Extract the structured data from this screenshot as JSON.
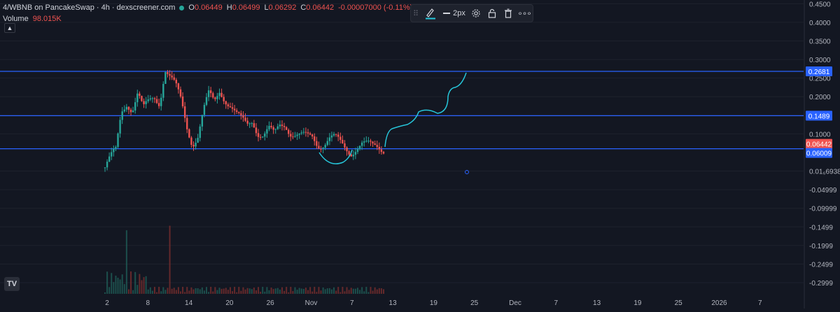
{
  "header": {
    "symbol_line": "4/WBNB on PancakeSwap · 4h · dexscreener.com",
    "ohlc": {
      "o_label": "O",
      "o_value": "0.06449",
      "h_label": "H",
      "h_value": "0.06499",
      "l_label": "L",
      "l_value": "0.06292",
      "c_label": "C",
      "c_value": "0.06442",
      "change": "-0.00007000 (-0.11%)"
    },
    "volume_label": "Volume",
    "volume_value": "98.015K",
    "collapse_icon": "chevron-up-icon"
  },
  "toolbar": {
    "pencil_icon": "pencil-icon",
    "line_width_label": "2px",
    "settings_icon": "gear-icon",
    "lock_icon": "lock-icon",
    "delete_icon": "trash-icon",
    "more_icon": "more-icon",
    "accent_color": "#26c6da"
  },
  "colors": {
    "background": "#131722",
    "up": "#26a69a",
    "down": "#ef5350",
    "hline": "#2962ff",
    "drawing": "#26c6da",
    "last_price": "#ef5350"
  },
  "chart_data": {
    "type": "candlestick",
    "ylim": [
      -0.33,
      0.46
    ],
    "y_ticks": [
      "0.4500",
      "0.4000",
      "0.3500",
      "0.3000",
      "0.2500",
      "0.2000",
      "0.1500",
      "0.1000",
      "0.01₆6938",
      "-0.04999",
      "-0.09999",
      "-0.1499",
      "-0.1999",
      "-0.2499",
      "-0.2999"
    ],
    "y_tick_values": [
      0.45,
      0.4,
      0.35,
      0.3,
      0.25,
      0.2,
      0.15,
      0.1,
      0.0,
      -0.05,
      -0.1,
      -0.15,
      -0.2,
      -0.25,
      -0.3
    ],
    "x_ticks": [
      "2",
      "8",
      "14",
      "20",
      "26",
      "Nov",
      "7",
      "13",
      "19",
      "25",
      "Dec",
      "7",
      "13",
      "19",
      "25",
      "2026",
      "7"
    ],
    "horizontal_lines": [
      0.2681,
      0.1489,
      0.06009
    ],
    "price_labels": [
      {
        "value": "0.2681",
        "color": "#2962ff"
      },
      {
        "value": "0.1489",
        "color": "#2962ff"
      },
      {
        "value": "0.06442",
        "color": "#ef5350"
      },
      {
        "value": "0.06009",
        "color": "#2962ff"
      }
    ],
    "last_price": 0.06442,
    "close_path": [
      [
        0,
        0.01
      ],
      [
        1,
        0.03
      ],
      [
        2,
        0.05
      ],
      [
        3,
        0.16
      ],
      [
        4,
        0.19
      ],
      [
        5,
        0.17
      ],
      [
        6,
        0.21
      ],
      [
        7,
        0.16
      ],
      [
        8,
        0.18
      ],
      [
        9,
        0.2
      ],
      [
        10,
        0.19
      ],
      [
        11,
        0.28
      ],
      [
        12,
        0.25
      ],
      [
        13,
        0.22
      ],
      [
        14,
        0.18
      ],
      [
        15,
        0.12
      ],
      [
        16,
        0.08
      ],
      [
        17,
        0.1
      ],
      [
        18,
        0.16
      ],
      [
        19,
        0.2
      ],
      [
        20,
        0.18
      ],
      [
        21,
        0.22
      ],
      [
        22,
        0.2
      ],
      [
        23,
        0.18
      ],
      [
        24,
        0.15
      ],
      [
        25,
        0.13
      ],
      [
        26,
        0.12
      ],
      [
        27,
        0.14
      ],
      [
        28,
        0.11
      ],
      [
        29,
        0.1
      ],
      [
        30,
        0.11
      ],
      [
        31,
        0.09
      ],
      [
        32,
        0.12
      ],
      [
        33,
        0.13
      ],
      [
        34,
        0.11
      ],
      [
        35,
        0.1
      ],
      [
        36,
        0.09
      ],
      [
        37,
        0.085
      ],
      [
        38,
        0.09
      ],
      [
        39,
        0.075
      ],
      [
        40,
        0.08
      ],
      [
        41,
        0.09
      ],
      [
        42,
        0.085
      ],
      [
        43,
        0.07
      ],
      [
        44,
        0.06
      ],
      [
        45,
        0.055
      ],
      [
        46,
        0.07
      ],
      [
        47,
        0.075
      ],
      [
        48,
        0.065
      ],
      [
        49,
        0.06
      ],
      [
        50,
        0.065
      ],
      [
        51,
        0.064
      ]
    ]
  }
}
